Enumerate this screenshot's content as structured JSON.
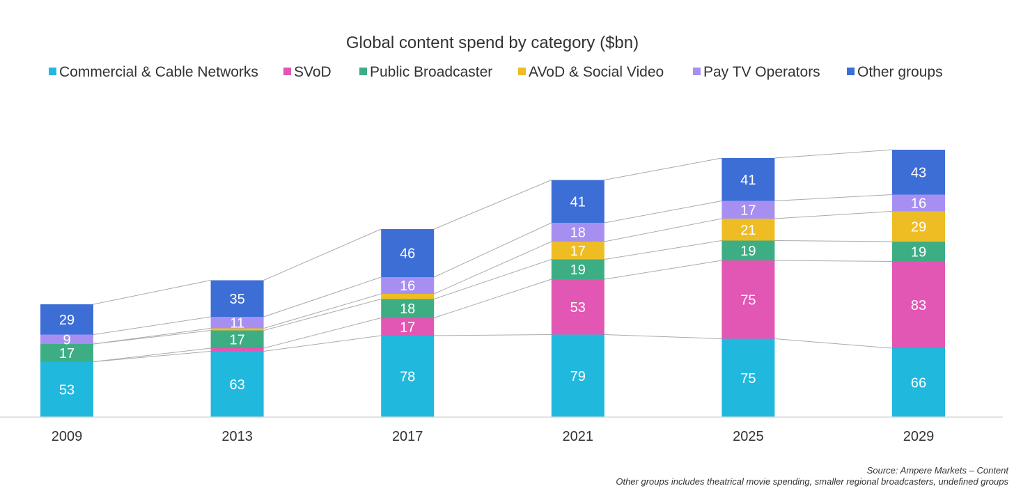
{
  "chart_data": {
    "type": "bar",
    "stacked": true,
    "title": "Global content spend by category ($bn)",
    "categories": [
      "2009",
      "2013",
      "2017",
      "2021",
      "2025",
      "2029"
    ],
    "series": [
      {
        "name": "Commercial & Cable Networks",
        "color": "#21B8DE",
        "values": [
          53,
          63,
          78,
          79,
          75,
          66
        ],
        "labels": [
          "53",
          "63",
          "78",
          "79",
          "75",
          "66"
        ]
      },
      {
        "name": "SVoD",
        "color": "#E257B4",
        "values": [
          0,
          3,
          17,
          53,
          75,
          83
        ],
        "labels": [
          "",
          "",
          "17",
          "53",
          "75",
          "83"
        ]
      },
      {
        "name": "Public Broadcaster",
        "color": "#3DAE84",
        "values": [
          17,
          17,
          18,
          19,
          19,
          19
        ],
        "labels": [
          "17",
          "17",
          "18",
          "19",
          "19",
          "19"
        ]
      },
      {
        "name": "AVoD & Social Video",
        "color": "#EEBD23",
        "values": [
          0,
          2,
          5,
          17,
          21,
          29
        ],
        "labels": [
          "",
          "",
          "",
          "17",
          "21",
          "29"
        ]
      },
      {
        "name": "Pay TV Operators",
        "color": "#A78FF2",
        "values": [
          9,
          11,
          16,
          18,
          17,
          16
        ],
        "labels": [
          "9",
          "11",
          "16",
          "18",
          "17",
          "16"
        ]
      },
      {
        "name": "Other groups",
        "color": "#3D6ED6",
        "values": [
          29,
          35,
          46,
          41,
          41,
          43
        ],
        "labels": [
          "29",
          "35",
          "46",
          "41",
          "41",
          "43"
        ]
      }
    ],
    "ylim": [
      0,
      270
    ],
    "grid": false,
    "legend": "top",
    "connector_lines": true,
    "connector_color": "#AAAAAA"
  },
  "footer": {
    "source": "Source: Ampere Markets – Content",
    "note": "Other groups includes theatrical movie spending, smaller regional broadcasters, undefined groups"
  }
}
